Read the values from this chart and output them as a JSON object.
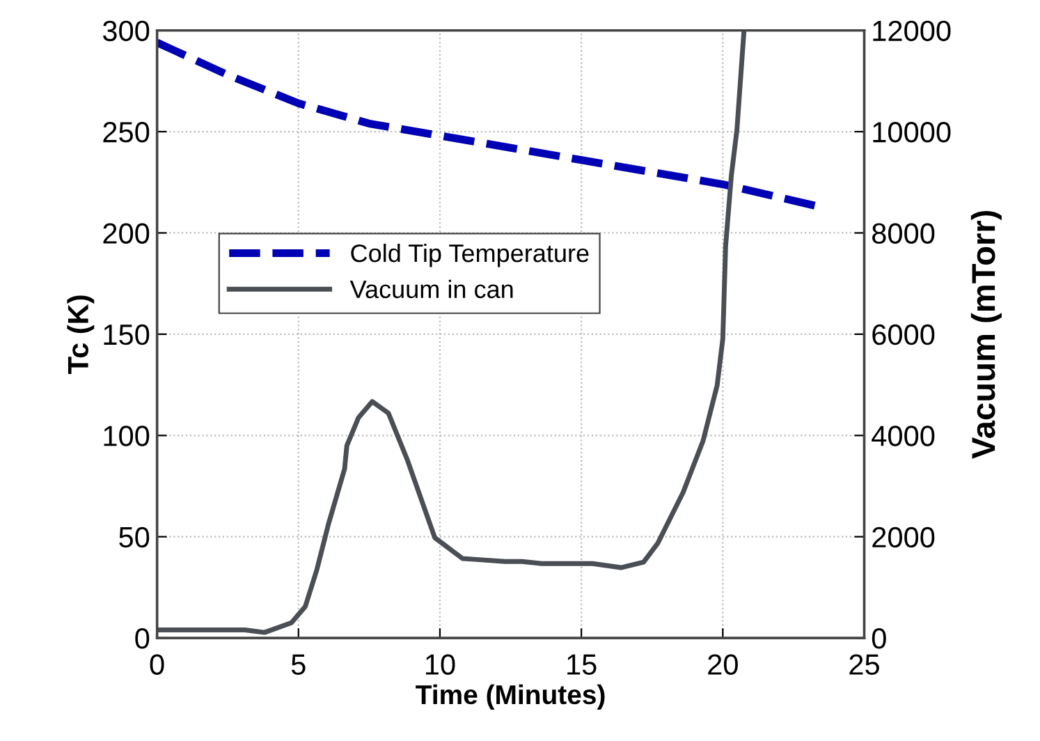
{
  "chart_data": {
    "type": "line",
    "xlabel": "Time (Minutes)",
    "ylabel": "Tc (K)",
    "y2label": "Vacuum (mTorr)",
    "xlim": [
      0,
      25
    ],
    "xticks": [
      0,
      5,
      10,
      15,
      20,
      25
    ],
    "ylim": [
      0,
      300
    ],
    "yticks": [
      0,
      50,
      100,
      150,
      200,
      250,
      300
    ],
    "y2lim": [
      0,
      12000
    ],
    "y2ticks": [
      0,
      2000,
      4000,
      6000,
      8000,
      10000,
      12000
    ],
    "grid": true,
    "legend": "center left",
    "series": [
      {
        "name": "Cold Tip Temperature",
        "color": "#0000b4",
        "line_style": "dashed",
        "x": [
          0,
          2.5,
          5,
          7.5,
          10,
          12.5,
          15,
          17.5,
          20,
          23.4
        ],
        "values": [
          294,
          278,
          264,
          254,
          248,
          242,
          236,
          230,
          224,
          213
        ]
      },
      {
        "name": "Vacuum in can",
        "color": "#4a4f55",
        "line_style": "solid",
        "axis": "y2",
        "x": [
          0,
          3.1,
          3.8,
          4.75,
          5.24,
          5.65,
          6.06,
          6.63,
          6.71,
          7.12,
          7.61,
          8.18,
          8.84,
          9.82,
          10.8,
          11.3,
          12.3,
          12.9,
          13.6,
          15.4,
          16.4,
          17.2,
          17.7,
          18.6,
          19.3,
          19.8,
          20.0,
          20.1,
          20.3,
          20.5,
          20.75
        ],
        "values": [
          160,
          160,
          110,
          300,
          620,
          1350,
          2250,
          3340,
          3800,
          4350,
          4670,
          4440,
          3530,
          1980,
          1570,
          1550,
          1510,
          1510,
          1470,
          1470,
          1390,
          1500,
          1870,
          2880,
          3890,
          4990,
          5910,
          7740,
          9120,
          10040,
          12000
        ]
      }
    ]
  }
}
